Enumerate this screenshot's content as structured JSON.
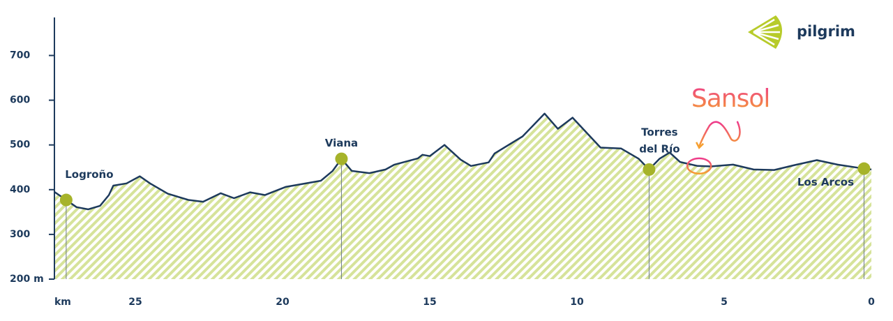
{
  "brand": "pilgrim",
  "chart_data": {
    "type": "area",
    "x_label": "km",
    "x": [
      27.75,
      27.35,
      27.0,
      26.6,
      26.2,
      25.9,
      25.75,
      25.3,
      24.85,
      24.5,
      23.9,
      23.2,
      22.7,
      22.1,
      21.65,
      21.1,
      20.6,
      19.9,
      18.7,
      18.3,
      18.0,
      17.65,
      17.05,
      16.5,
      16.2,
      15.4,
      15.25,
      15.0,
      14.5,
      13.95,
      13.6,
      13.0,
      12.8,
      11.85,
      11.1,
      10.65,
      10.15,
      9.2,
      8.5,
      7.9,
      7.55,
      7.2,
      6.85,
      6.5,
      5.9,
      5.45,
      4.7,
      4.0,
      3.3,
      2.6,
      1.85,
      1.15,
      0.25,
      0
    ],
    "values": [
      395,
      377,
      361,
      356,
      364,
      388,
      409,
      414,
      430,
      414,
      391,
      377,
      373,
      392,
      381,
      394,
      388,
      406,
      420,
      442,
      469,
      442,
      437,
      445,
      456,
      470,
      478,
      475,
      500,
      467,
      453,
      461,
      481,
      519,
      570,
      536,
      561,
      494,
      492,
      469,
      445,
      469,
      483,
      462,
      453,
      452,
      456,
      445,
      444,
      455,
      466,
      456,
      447,
      445
    ],
    "color": "#1d3a5c",
    "fill_color": "#d6e39a",
    "marker_color": "#a6b32a",
    "xlim": [
      27.75,
      0
    ],
    "xticks": [
      25,
      20,
      15,
      10,
      5,
      0
    ],
    "ylim": [
      200,
      785
    ],
    "yticks": [
      {
        "value": 200,
        "label": "200 m"
      },
      300,
      400,
      500,
      600,
      700
    ],
    "points": [
      {
        "label": [
          "Logroño"
        ],
        "x": 27.35,
        "y": 377
      },
      {
        "label": [
          "Viana"
        ],
        "x": 18.0,
        "y": 469
      },
      {
        "label": [
          "Torres",
          "del Río"
        ],
        "x": 7.55,
        "y": 445
      },
      {
        "label": [
          "Los Arcos"
        ],
        "x": 0.25,
        "y": 447
      }
    ],
    "annotations": [
      {
        "text": "Sansol",
        "x": 5.85,
        "y": 453
      }
    ]
  }
}
